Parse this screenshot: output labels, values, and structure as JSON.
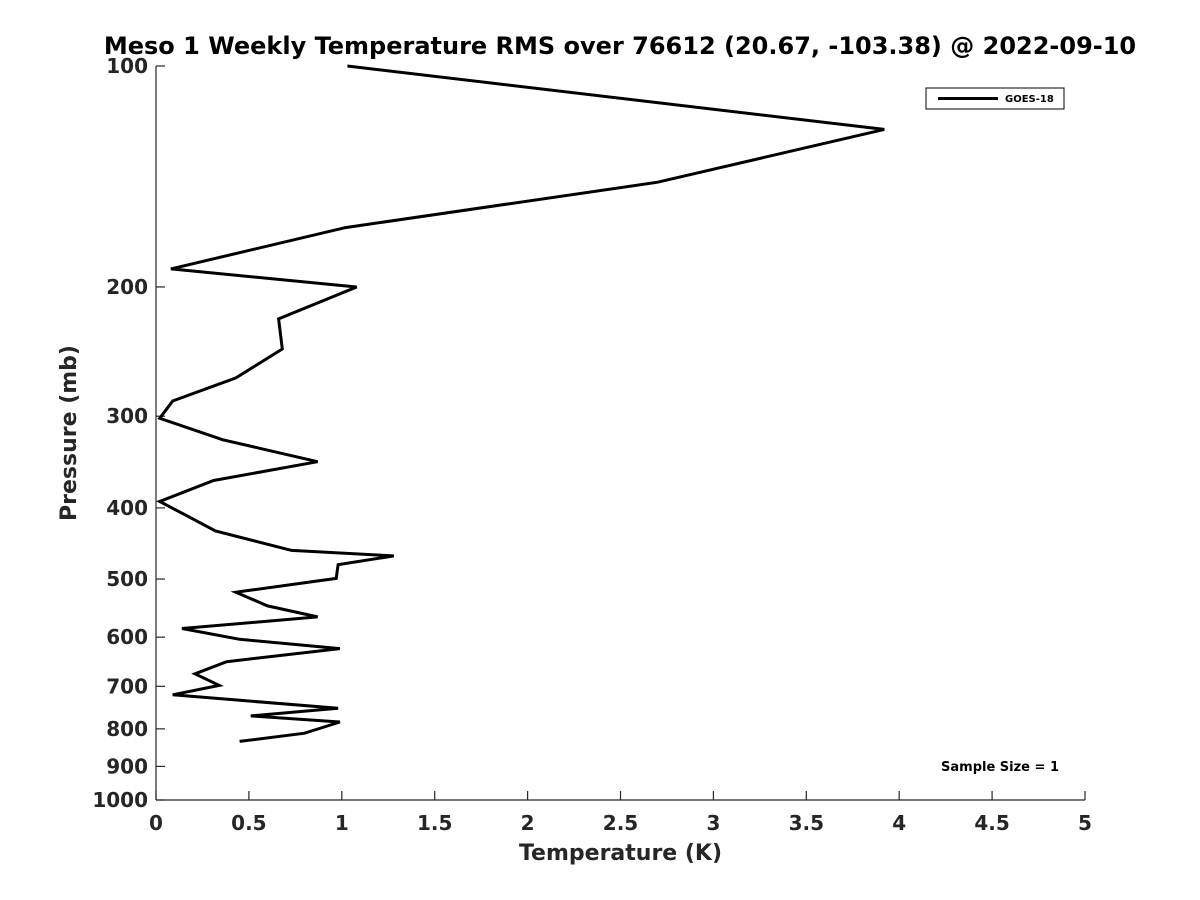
{
  "chart_data": {
    "type": "line",
    "title": "Meso 1 Weekly Temperature RMS over 76612 (20.67, -103.38) @ 2022-09-10",
    "xlabel": "Temperature (K)",
    "ylabel": "Pressure (mb)",
    "xlim": [
      0,
      5
    ],
    "ylim": [
      100,
      1000
    ],
    "y_scale": "log",
    "y_reversed": true,
    "x_ticks": [
      "0",
      "0.5",
      "1",
      "1.5",
      "2",
      "2.5",
      "3",
      "3.5",
      "4",
      "4.5",
      "5"
    ],
    "y_ticks": [
      "100",
      "200",
      "300",
      "400",
      "500",
      "600",
      "700",
      "800",
      "900",
      "1000"
    ],
    "grid": false,
    "legend_position": "top-right",
    "series": [
      {
        "name": "GOES-18",
        "color": "#000000",
        "x": [
          1.03,
          3.92,
          2.7,
          1.02,
          0.08,
          1.08,
          0.66,
          0.68,
          0.43,
          0.09,
          0.02,
          0.36,
          0.87,
          0.31,
          0.02,
          0.15,
          0.32,
          0.73,
          1.28,
          0.98,
          0.97,
          0.43,
          0.6,
          0.87,
          0.14,
          0.45,
          0.99,
          0.38,
          0.21,
          0.34,
          0.09,
          0.98,
          0.51,
          0.99,
          0.8,
          0.45
        ],
        "y": [
          100,
          122,
          144,
          166,
          189,
          200,
          221,
          243,
          266,
          286,
          302,
          323,
          346,
          367,
          392,
          408,
          430,
          457,
          465,
          478,
          499,
          521,
          544,
          563,
          584,
          604,
          622,
          648,
          673,
          698,
          719,
          750,
          768,
          783,
          811,
          832
        ]
      }
    ],
    "annotations": [
      {
        "text": "Sample Size = 1",
        "position": "bottom-right"
      }
    ]
  }
}
